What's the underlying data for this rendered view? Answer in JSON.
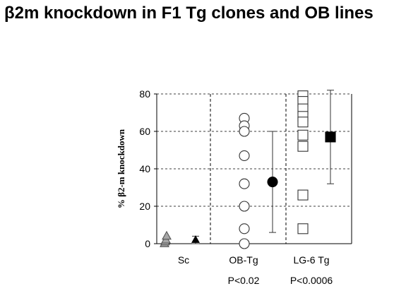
{
  "title": "β2m knockdown in F1 Tg clones and OB lines",
  "chart_data": {
    "type": "scatter",
    "ylabel": "% β2-m knockdown",
    "ylim": [
      0,
      80
    ],
    "yticks": [
      0,
      20,
      40,
      60,
      80
    ],
    "grid": true,
    "groups": [
      {
        "label": "Sc",
        "pvalue": "",
        "points": [
          {
            "y": 0,
            "marker": "triangle",
            "fill": "#a6a6a6"
          },
          {
            "y": 1,
            "marker": "triangle",
            "fill": "#a6a6a6"
          },
          {
            "y": 2,
            "marker": "triangle",
            "fill": "#a6a6a6"
          },
          {
            "y": 4,
            "marker": "triangle",
            "fill": "#a6a6a6"
          }
        ],
        "summary": {
          "y": 2,
          "err_low": 0,
          "err_high": 4,
          "marker": "triangle",
          "fill": "#000000"
        }
      },
      {
        "label": "OB-Tg",
        "pvalue": "P<0.02",
        "points": [
          {
            "y": 67,
            "marker": "circle",
            "fill": "#ffffff"
          },
          {
            "y": 63,
            "marker": "circle",
            "fill": "#ffffff"
          },
          {
            "y": 60,
            "marker": "circle",
            "fill": "#ffffff"
          },
          {
            "y": 47,
            "marker": "circle",
            "fill": "#ffffff"
          },
          {
            "y": 32,
            "marker": "circle",
            "fill": "#ffffff"
          },
          {
            "y": 20,
            "marker": "circle",
            "fill": "#ffffff"
          },
          {
            "y": 8,
            "marker": "circle",
            "fill": "#ffffff"
          },
          {
            "y": 0,
            "marker": "circle",
            "fill": "#ffffff"
          }
        ],
        "summary": {
          "y": 33,
          "err_low": 6,
          "err_high": 60,
          "marker": "circle",
          "fill": "#000000"
        }
      },
      {
        "label": "LG-6 Tg",
        "pvalue": "P<0.0006",
        "points": [
          {
            "y": 79,
            "marker": "square",
            "fill": "#ffffff"
          },
          {
            "y": 76,
            "marker": "square",
            "fill": "#ffffff"
          },
          {
            "y": 72,
            "marker": "square",
            "fill": "#ffffff"
          },
          {
            "y": 68,
            "marker": "square",
            "fill": "#ffffff"
          },
          {
            "y": 65,
            "marker": "square",
            "fill": "#ffffff"
          },
          {
            "y": 58,
            "marker": "square",
            "fill": "#ffffff"
          },
          {
            "y": 52,
            "marker": "square",
            "fill": "#ffffff"
          },
          {
            "y": 26,
            "marker": "square",
            "fill": "#ffffff"
          },
          {
            "y": 8,
            "marker": "square",
            "fill": "#ffffff"
          }
        ],
        "summary": {
          "y": 57,
          "err_low": 32,
          "err_high": 82,
          "marker": "square",
          "fill": "#000000"
        }
      }
    ]
  }
}
